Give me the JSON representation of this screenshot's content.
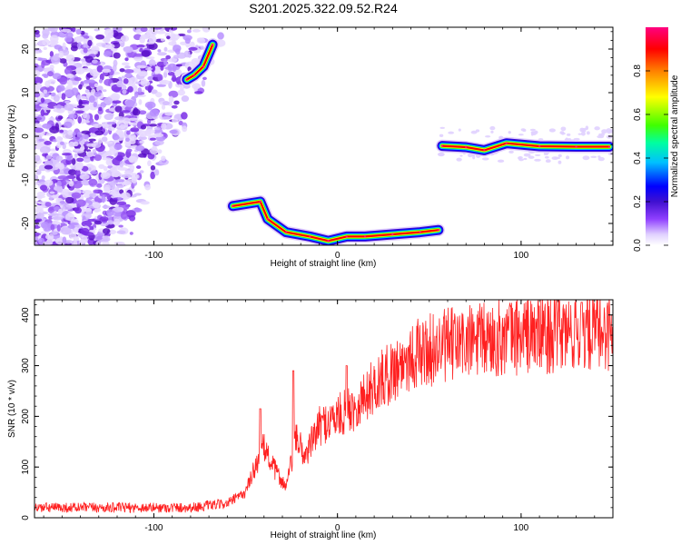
{
  "title": "S201.2025.322.09.52.R24",
  "chart_data": [
    {
      "type": "heatmap",
      "name": "spectrogram",
      "xlabel": "Height of straight line (km)",
      "ylabel": "Frequency (Hz)",
      "xlim": [
        -165,
        150
      ],
      "ylim": [
        -25,
        25
      ],
      "xticks": [
        -100,
        0,
        100
      ],
      "yticks": [
        -20,
        -10,
        0,
        10,
        20
      ],
      "colorbar": {
        "label": "Normalized spectral amplitude",
        "range": [
          0,
          1
        ],
        "ticks": [
          0.0,
          0.2,
          0.4,
          0.6,
          0.8
        ],
        "tick_labels": [
          "0.0",
          "0.2",
          "0.4",
          "0.6",
          "0.8"
        ],
        "colormap": [
          "#ffffff",
          "#e0d0ff",
          "#9040ff",
          "#4010d0",
          "#0000ff",
          "#00c0ff",
          "#00ffa0",
          "#40ff00",
          "#ffff00",
          "#ff8000",
          "#ff0000",
          "#ff0080"
        ]
      },
      "ridge": [
        {
          "x": -82,
          "y": 13
        },
        {
          "x": -78,
          "y": 14
        },
        {
          "x": -73,
          "y": 16
        },
        {
          "x": -68,
          "y": 21
        },
        {
          "x": -57,
          "y": -16
        },
        {
          "x": -42,
          "y": -15
        },
        {
          "x": -38,
          "y": -19
        },
        {
          "x": -28,
          "y": -22
        },
        {
          "x": -15,
          "y": -23
        },
        {
          "x": -5,
          "y": -24
        },
        {
          "x": 5,
          "y": -23
        },
        {
          "x": 15,
          "y": -23
        },
        {
          "x": 30,
          "y": -22.5
        },
        {
          "x": 45,
          "y": -22
        },
        {
          "x": 55,
          "y": -21.5
        },
        {
          "x": 57,
          "y": -2.2
        },
        {
          "x": 70,
          "y": -2.5
        },
        {
          "x": 80,
          "y": -3.2
        },
        {
          "x": 92,
          "y": -1.6
        },
        {
          "x": 110,
          "y": -2.3
        },
        {
          "x": 130,
          "y": -2.4
        },
        {
          "x": 148,
          "y": -2.4
        }
      ]
    },
    {
      "type": "line",
      "name": "snr",
      "xlabel": "Height of straight line (km)",
      "ylabel": "SNR (10 * v/v)",
      "xlim": [
        -165,
        150
      ],
      "ylim": [
        0,
        430
      ],
      "xticks": [
        -100,
        0,
        100
      ],
      "yticks": [
        0,
        100,
        200,
        300,
        400
      ],
      "color": "#ff2020",
      "envelope": [
        {
          "x": -165,
          "y": 20
        },
        {
          "x": -80,
          "y": 20
        },
        {
          "x": -60,
          "y": 28
        },
        {
          "x": -50,
          "y": 50
        },
        {
          "x": -45,
          "y": 100
        },
        {
          "x": -40,
          "y": 140
        },
        {
          "x": -35,
          "y": 100
        },
        {
          "x": -28,
          "y": 60
        },
        {
          "x": -22,
          "y": 160
        },
        {
          "x": -18,
          "y": 120
        },
        {
          "x": -10,
          "y": 180
        },
        {
          "x": 0,
          "y": 200
        },
        {
          "x": 10,
          "y": 220
        },
        {
          "x": 20,
          "y": 260
        },
        {
          "x": 40,
          "y": 320
        },
        {
          "x": 60,
          "y": 340
        },
        {
          "x": 100,
          "y": 360
        },
        {
          "x": 150,
          "y": 370
        }
      ],
      "spikes": [
        {
          "x": -42,
          "y": 215
        },
        {
          "x": -24,
          "y": 290
        },
        {
          "x": 5,
          "y": 300
        },
        {
          "x": 133,
          "y": 425
        }
      ]
    }
  ]
}
